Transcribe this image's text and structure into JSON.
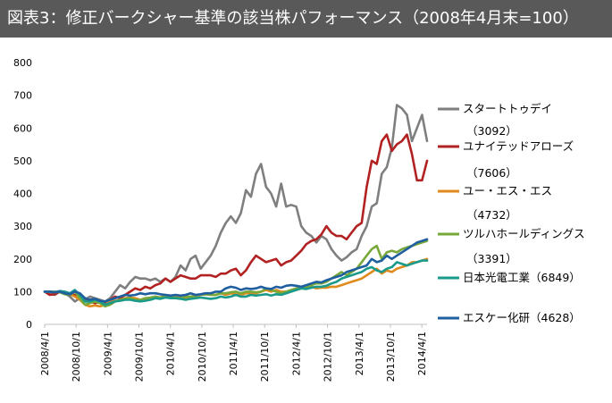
{
  "chart_data": {
    "type": "line",
    "title": "図表3：修正バークシャー基準の該当株パフォーマンス（2008年4月末=100）",
    "xlabel": "",
    "ylabel": "",
    "ylim": [
      0,
      800
    ],
    "yticks": [
      "0",
      "100",
      "200",
      "300",
      "400",
      "500",
      "600",
      "700",
      "800"
    ],
    "x_start": "2008/4",
    "x_end": "2014/5",
    "xticks": [
      "2008/4/1",
      "2008/10/1",
      "2009/4/1",
      "2009/10/1",
      "2010/4/1",
      "2010/10/1",
      "2011/4/1",
      "2011/10/1",
      "2012/4/1",
      "2012/10/1",
      "2013/4/1",
      "2013/10/1",
      "2014/4/1"
    ],
    "grid": false,
    "legend_position": "right",
    "series": [
      {
        "name": "スタートトゥデイ",
        "code": "（3092）",
        "color": "#7f7f7f",
        "values": [
          100,
          95,
          90,
          100,
          95,
          85,
          70,
          80,
          75,
          85,
          80,
          75,
          70,
          80,
          100,
          120,
          110,
          130,
          145,
          140,
          140,
          135,
          140,
          130,
          140,
          130,
          145,
          180,
          165,
          200,
          210,
          170,
          190,
          210,
          240,
          280,
          310,
          330,
          310,
          340,
          410,
          390,
          460,
          490,
          420,
          400,
          360,
          430,
          360,
          365,
          360,
          300,
          280,
          270,
          250,
          270,
          260,
          230,
          210,
          195,
          205,
          220,
          230,
          270,
          300,
          360,
          370,
          460,
          480,
          540,
          670,
          660,
          640,
          560,
          600,
          640,
          560
        ]
      },
      {
        "name": "ユナイテッドアローズ",
        "code": "（7606）",
        "color": "#b22222",
        "values": [
          100,
          90,
          92,
          100,
          95,
          90,
          90,
          88,
          80,
          70,
          65,
          68,
          65,
          75,
          85,
          80,
          90,
          100,
          110,
          105,
          115,
          110,
          120,
          125,
          140,
          130,
          140,
          150,
          145,
          140,
          140,
          150,
          150,
          150,
          145,
          155,
          155,
          165,
          170,
          150,
          165,
          190,
          210,
          200,
          190,
          195,
          200,
          180,
          190,
          195,
          210,
          225,
          245,
          255,
          260,
          275,
          300,
          280,
          270,
          270,
          260,
          280,
          300,
          310,
          420,
          500,
          490,
          560,
          580,
          530,
          550,
          560,
          580,
          520,
          440,
          440,
          500
        ]
      },
      {
        "name": "ユー・エス・エス",
        "code": "（4732）",
        "color": "#e08a1c",
        "values": [
          100,
          100,
          98,
          100,
          95,
          92,
          85,
          75,
          60,
          55,
          58,
          55,
          60,
          70,
          72,
          75,
          80,
          82,
          80,
          75,
          75,
          80,
          85,
          82,
          90,
          88,
          85,
          82,
          80,
          85,
          85,
          90,
          92,
          90,
          90,
          95,
          90,
          95,
          92,
          90,
          95,
          95,
          95,
          100,
          105,
          100,
          105,
          100,
          100,
          102,
          105,
          110,
          110,
          115,
          110,
          112,
          112,
          115,
          115,
          120,
          125,
          130,
          135,
          140,
          150,
          160,
          170,
          155,
          165,
          160,
          170,
          175,
          180,
          190,
          190,
          195,
          200
        ]
      },
      {
        "name": "ツルハホールディングス",
        "code": "（3391）",
        "color": "#77a83a",
        "values": [
          100,
          100,
          100,
          98,
          92,
          90,
          100,
          80,
          60,
          65,
          70,
          65,
          55,
          60,
          70,
          75,
          78,
          80,
          75,
          75,
          80,
          82,
          85,
          82,
          88,
          85,
          82,
          80,
          85,
          85,
          88,
          90,
          92,
          90,
          90,
          95,
          95,
          98,
          100,
          95,
          100,
          100,
          98,
          100,
          110,
          105,
          100,
          95,
          100,
          105,
          110,
          112,
          115,
          120,
          125,
          125,
          130,
          140,
          150,
          160,
          150,
          160,
          170,
          190,
          210,
          230,
          240,
          200,
          220,
          225,
          220,
          230,
          235,
          240,
          245,
          250,
          255
        ]
      },
      {
        "name": "日本光電工業",
        "code": "（6849）",
        "color": "#1a9a8a",
        "values": [
          100,
          100,
          98,
          102,
          100,
          95,
          105,
          90,
          70,
          70,
          75,
          70,
          60,
          65,
          70,
          72,
          75,
          75,
          72,
          70,
          72,
          75,
          80,
          78,
          82,
          80,
          80,
          78,
          75,
          78,
          80,
          82,
          80,
          78,
          80,
          85,
          82,
          85,
          90,
          85,
          85,
          90,
          88,
          90,
          92,
          88,
          92,
          90,
          95,
          100,
          105,
          110,
          108,
          112,
          115,
          115,
          118,
          125,
          130,
          140,
          145,
          150,
          155,
          160,
          170,
          175,
          165,
          160,
          170,
          175,
          190,
          185,
          180,
          185,
          190,
          195,
          195
        ]
      },
      {
        "name": "エスケー化研",
        "code": "（4628）",
        "color": "#1f5fa0",
        "values": [
          100,
          100,
          98,
          100,
          95,
          92,
          100,
          95,
          80,
          75,
          78,
          72,
          70,
          75,
          80,
          85,
          90,
          88,
          90,
          95,
          92,
          95,
          95,
          92,
          90,
          88,
          90,
          88,
          90,
          95,
          90,
          92,
          95,
          95,
          100,
          100,
          110,
          115,
          112,
          105,
          110,
          108,
          110,
          115,
          110,
          108,
          115,
          112,
          118,
          120,
          118,
          115,
          120,
          125,
          130,
          128,
          135,
          140,
          145,
          150,
          160,
          165,
          170,
          175,
          180,
          200,
          190,
          195,
          210,
          200,
          210,
          220,
          230,
          240,
          250,
          255,
          260
        ]
      }
    ]
  }
}
